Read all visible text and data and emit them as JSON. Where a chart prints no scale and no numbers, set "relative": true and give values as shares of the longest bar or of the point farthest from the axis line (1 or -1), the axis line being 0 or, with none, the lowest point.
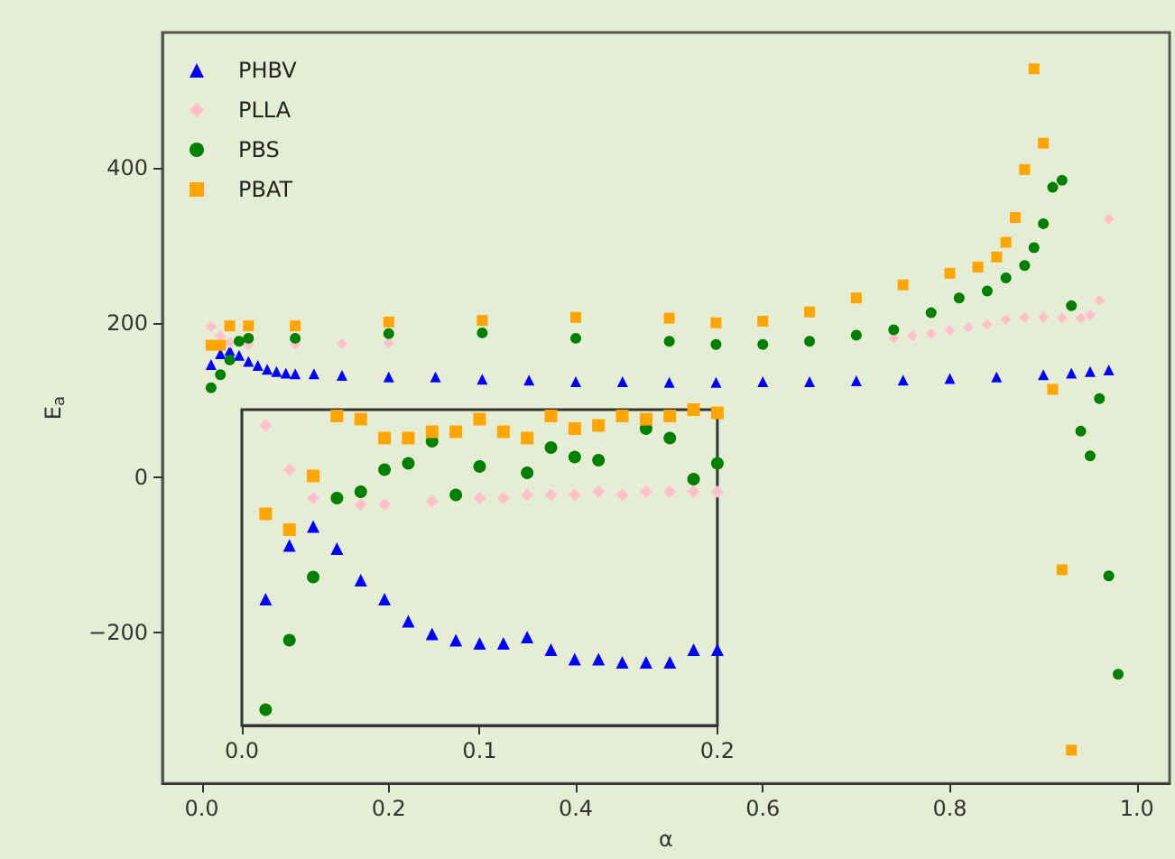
{
  "chart_data": [
    {
      "type": "scatter",
      "xlabel": "α",
      "ylabel": "E$_{a}$",
      "xlim": [
        -0.042,
        1.035
      ],
      "ylim": [
        -395,
        575
      ],
      "xticks": [
        {
          "value": 0,
          "label": "0.0"
        },
        {
          "value": 0.2,
          "label": "0.2"
        },
        {
          "value": 0.4,
          "label": "0.4"
        },
        {
          "value": 0.6,
          "label": "0.6"
        },
        {
          "value": 0.8,
          "label": "0.8"
        },
        {
          "value": 1,
          "label": "1.0"
        }
      ],
      "yticks": [
        {
          "value": -200,
          "label": "−200"
        },
        0,
        200,
        400
      ],
      "legend": "top left",
      "grid": false,
      "series": [
        {
          "name": "PHBV",
          "color": "#0000ff",
          "marker": "triangle",
          "x": [
            0.01,
            0.02,
            0.03,
            0.04,
            0.05,
            0.06,
            0.07,
            0.08,
            0.09,
            0.1,
            0.12,
            0.15,
            0.2,
            0.25,
            0.3,
            0.35,
            0.4,
            0.45,
            0.5,
            0.55,
            0.6,
            0.65,
            0.7,
            0.75,
            0.8,
            0.85,
            0.9,
            0.93,
            0.95,
            0.97
          ],
          "values": [
            146,
            160,
            164,
            158,
            150,
            145,
            140,
            137,
            135,
            134,
            134,
            132,
            130,
            130,
            127,
            126,
            124,
            124,
            123,
            123,
            124,
            124,
            125,
            126,
            128,
            130,
            133,
            135,
            137,
            139
          ]
        },
        {
          "name": "PLLA",
          "color": "#ffc0cb",
          "marker": "diamond",
          "x": [
            0.01,
            0.02,
            0.03,
            0.05,
            0.1,
            0.15,
            0.2,
            0.74,
            0.76,
            0.78,
            0.8,
            0.82,
            0.84,
            0.86,
            0.88,
            0.9,
            0.92,
            0.94,
            0.95,
            0.96,
            0.97
          ],
          "values": [
            195,
            183,
            174,
            172,
            172,
            173,
            174,
            180,
            183,
            186,
            190,
            194,
            198,
            204,
            207,
            207,
            206,
            206,
            210,
            229,
            334
          ]
        },
        {
          "name": "PBS",
          "color": "#008000",
          "marker": "circle",
          "x": [
            0.01,
            0.02,
            0.03,
            0.04,
            0.05,
            0.1,
            0.2,
            0.3,
            0.4,
            0.5,
            0.55,
            0.6,
            0.65,
            0.7,
            0.74,
            0.78,
            0.81,
            0.84,
            0.86,
            0.88,
            0.89,
            0.9,
            0.91,
            0.92,
            0.93,
            0.94,
            0.95,
            0.96,
            0.97,
            0.98
          ],
          "values": [
            116,
            133,
            152,
            176,
            180,
            180,
            186,
            187,
            180,
            176,
            172,
            172,
            176,
            184,
            191,
            213,
            232,
            241,
            258,
            274,
            297,
            328,
            375,
            384,
            222,
            60,
            28,
            102,
            -127,
            -254
          ]
        },
        {
          "name": "PBAT",
          "color": "#ffa500",
          "marker": "square",
          "x": [
            0.01,
            0.02,
            0.03,
            0.05,
            0.1,
            0.2,
            0.3,
            0.4,
            0.5,
            0.55,
            0.6,
            0.65,
            0.7,
            0.75,
            0.8,
            0.83,
            0.85,
            0.86,
            0.87,
            0.88,
            0.89,
            0.9,
            0.91,
            0.92,
            0.93
          ],
          "values": [
            171,
            171,
            196,
            196,
            196,
            201,
            203,
            207,
            206,
            200,
            202,
            214,
            232,
            249,
            264,
            272,
            285,
            304,
            336,
            398,
            528,
            432,
            114,
            -119,
            -352
          ]
        }
      ]
    },
    {
      "type": "scatter",
      "relative": true,
      "xlim": [
        0,
        0.2
      ],
      "xticks": [
        {
          "value": 0,
          "label": "0.0"
        },
        {
          "value": 0.1,
          "label": "0.1"
        },
        {
          "value": 0.2,
          "label": "0.2"
        }
      ],
      "tick_labels": "x",
      "grid": false,
      "x": [
        0.01,
        0.02,
        0.03,
        0.04,
        0.05,
        0.06,
        0.07,
        0.08,
        0.09,
        0.1,
        0.11,
        0.12,
        0.13,
        0.14,
        0.15,
        0.16,
        0.17,
        0.18,
        0.19,
        0.2
      ],
      "series": [
        {
          "color": "#0000ff",
          "marker": "triangle",
          "values": [
            0.4,
            0.57,
            0.63,
            0.56,
            0.46,
            0.4,
            0.33,
            0.29,
            0.27,
            0.26,
            0.26,
            0.28,
            0.24,
            0.21,
            0.21,
            0.2,
            0.2,
            0.2,
            0.24,
            0.24
          ]
        },
        {
          "color": "#ffc0cb",
          "marker": "diamond",
          "values": [
            0.95,
            0.81,
            0.72,
            null,
            0.7,
            0.7,
            null,
            0.71,
            null,
            0.72,
            0.72,
            0.73,
            0.73,
            0.73,
            0.74,
            0.73,
            0.74,
            0.74,
            0.74,
            0.74
          ]
        },
        {
          "color": "#008000",
          "marker": "circle",
          "values": [
            0.05,
            0.27,
            0.47,
            0.72,
            0.74,
            0.81,
            0.83,
            0.9,
            0.73,
            0.82,
            null,
            0.8,
            0.88,
            0.85,
            0.84,
            null,
            0.94,
            0.91,
            0.78,
            0.83
          ]
        },
        {
          "color": "#ffa500",
          "marker": "square",
          "values": [
            0.67,
            0.62,
            0.79,
            0.98,
            0.97,
            0.91,
            0.91,
            0.93,
            0.93,
            0.97,
            0.93,
            0.91,
            0.98,
            0.94,
            0.95,
            0.98,
            0.97,
            0.98,
            1,
            0.99
          ]
        }
      ]
    }
  ]
}
